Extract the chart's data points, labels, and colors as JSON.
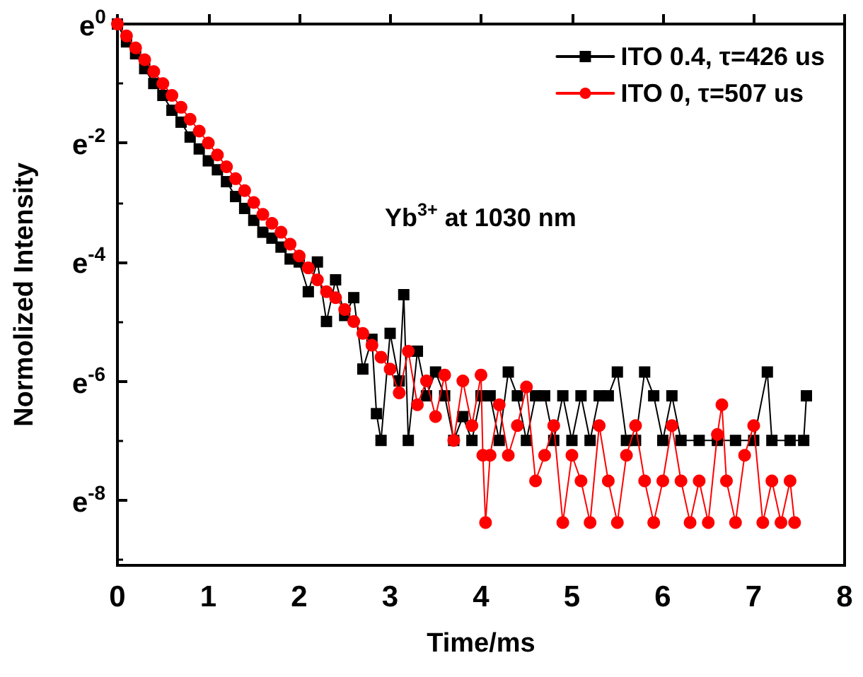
{
  "chart_data": {
    "type": "line",
    "xlabel": "Time/ms",
    "ylabel": "Normolized Intensity",
    "annotations": [
      "Yb$^{3+}$ at 1030 nm"
    ],
    "xlim": [
      0,
      8
    ],
    "xticks": [
      0,
      1,
      2,
      3,
      4,
      5,
      6,
      7,
      8
    ],
    "ylim": [
      -9.1,
      0
    ],
    "yticks": [
      {
        "value": 0,
        "label": "e$^{0}$"
      },
      {
        "value": -2,
        "label": "e$^{-2}$"
      },
      {
        "value": -4,
        "label": "e$^{-4}$"
      },
      {
        "value": -6,
        "label": "e$^{-6}$"
      },
      {
        "value": -8,
        "label": "e$^{-8}$"
      }
    ],
    "grid": false,
    "legend": "top right",
    "line_style": "solid",
    "series": [
      {
        "name": "ITO 0.4, τ=426 us",
        "color": "#000000",
        "marker": "square",
        "x": [
          0,
          0.1,
          0.2,
          0.3,
          0.4,
          0.5,
          0.6,
          0.7,
          0.8,
          0.9,
          1.0,
          1.1,
          1.2,
          1.3,
          1.4,
          1.5,
          1.6,
          1.7,
          1.8,
          1.9,
          2.0,
          2.1,
          2.2,
          2.3,
          2.4,
          2.5,
          2.6,
          2.7,
          2.8,
          2.85,
          2.9,
          3.0,
          3.1,
          3.15,
          3.2,
          3.3,
          3.4,
          3.5,
          3.6,
          3.7,
          3.8,
          3.9,
          4.0,
          4.1,
          4.2,
          4.3,
          4.4,
          4.5,
          4.6,
          4.7,
          4.8,
          4.9,
          5.0,
          5.1,
          5.2,
          5.3,
          5.4,
          5.5,
          5.6,
          5.7,
          5.8,
          5.9,
          6.0,
          6.1,
          6.2,
          6.4,
          6.6,
          6.8,
          7.0,
          7.15,
          7.2,
          7.4,
          7.55,
          7.58
        ],
        "values": [
          0,
          -0.3,
          -0.5,
          -0.75,
          -1.0,
          -1.2,
          -1.45,
          -1.65,
          -1.9,
          -2.1,
          -2.3,
          -2.45,
          -2.65,
          -2.9,
          -3.1,
          -3.3,
          -3.5,
          -3.6,
          -3.75,
          -3.95,
          -4.0,
          -4.5,
          -4.0,
          -5.0,
          -4.3,
          -4.9,
          -4.6,
          -5.8,
          -5.3,
          -6.55,
          -7.0,
          -5.2,
          -6.0,
          -4.55,
          -7.0,
          -5.5,
          -6.25,
          -5.85,
          -6.25,
          -7.0,
          -6.6,
          -7.0,
          -6.25,
          -6.25,
          -7.0,
          -5.85,
          -6.25,
          -7.0,
          -6.25,
          -6.25,
          -7.0,
          -6.25,
          -7.0,
          -6.25,
          -7.0,
          -6.25,
          -6.25,
          -5.85,
          -7.0,
          -7.0,
          -5.85,
          -6.25,
          -7.0,
          -6.25,
          -7.0,
          -7.0,
          -7.0,
          -7.0,
          -7.0,
          -5.85,
          -7.0,
          -7.0,
          -7.0,
          -6.25
        ]
      },
      {
        "name": "ITO 0, τ=507 us",
        "color": "#ff0000",
        "marker": "circle",
        "x": [
          0,
          0.1,
          0.2,
          0.3,
          0.4,
          0.5,
          0.6,
          0.7,
          0.8,
          0.9,
          1.0,
          1.1,
          1.2,
          1.3,
          1.4,
          1.5,
          1.6,
          1.7,
          1.8,
          1.9,
          2.0,
          2.1,
          2.2,
          2.3,
          2.4,
          2.5,
          2.6,
          2.7,
          2.8,
          2.9,
          3.0,
          3.1,
          3.2,
          3.3,
          3.4,
          3.5,
          3.6,
          3.7,
          3.8,
          3.9,
          4.0,
          4.02,
          4.05,
          4.1,
          4.2,
          4.3,
          4.4,
          4.5,
          4.6,
          4.7,
          4.8,
          4.9,
          5.0,
          5.1,
          5.2,
          5.3,
          5.4,
          5.5,
          5.6,
          5.7,
          5.8,
          5.9,
          6.0,
          6.1,
          6.2,
          6.3,
          6.4,
          6.5,
          6.6,
          6.65,
          6.7,
          6.8,
          6.9,
          7.0,
          7.1,
          7.2,
          7.3,
          7.4,
          7.45
        ],
        "values": [
          0,
          -0.2,
          -0.4,
          -0.6,
          -0.8,
          -1.0,
          -1.2,
          -1.4,
          -1.6,
          -1.8,
          -2.0,
          -2.2,
          -2.4,
          -2.6,
          -2.8,
          -3.0,
          -3.2,
          -3.35,
          -3.5,
          -3.7,
          -3.9,
          -4.1,
          -4.3,
          -4.5,
          -4.6,
          -4.8,
          -5.0,
          -5.2,
          -5.4,
          -5.6,
          -5.8,
          -6.2,
          -5.5,
          -6.4,
          -6.0,
          -6.6,
          -5.9,
          -7.0,
          -6.0,
          -6.75,
          -5.9,
          -7.25,
          -8.38,
          -7.25,
          -6.4,
          -7.25,
          -6.75,
          -6.1,
          -7.68,
          -7.25,
          -6.75,
          -8.38,
          -7.25,
          -7.68,
          -8.38,
          -6.75,
          -7.68,
          -8.38,
          -7.25,
          -6.75,
          -7.68,
          -8.38,
          -7.68,
          -6.75,
          -7.68,
          -8.38,
          -7.68,
          -8.38,
          -6.9,
          -6.4,
          -7.68,
          -8.38,
          -7.25,
          -6.75,
          -8.38,
          -7.68,
          -8.38,
          -7.68,
          -8.38
        ]
      }
    ]
  }
}
